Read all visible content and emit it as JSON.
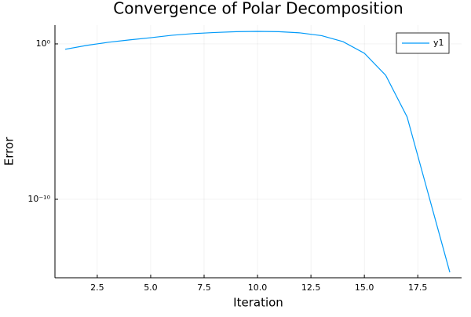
{
  "chart_data": {
    "type": "line",
    "title": "Convergence of Polar Decomposition",
    "x_label": "Iteration",
    "y_label": "Error",
    "x": [
      1,
      2,
      3,
      4,
      5,
      6,
      7,
      8,
      9,
      10,
      11,
      12,
      13,
      14,
      15,
      16,
      17,
      18,
      19
    ],
    "series": [
      {
        "name": "y1",
        "color": "#009af9",
        "values": [
          0.45,
          0.8,
          1.26,
          1.8,
          2.5,
          3.6,
          4.6,
          5.4,
          6.1,
          6.4,
          6.1,
          5.1,
          3.4,
          1.4,
          0.25,
          0.0095,
          2e-05,
          2e-10,
          2e-15
        ]
      }
    ],
    "xlim": [
      0.52,
      19.55
    ],
    "xticks": [
      2.5,
      {
        "value": 5,
        "label": "5.0"
      },
      7.5,
      {
        "value": 10,
        "label": "10.0"
      },
      12.5,
      {
        "value": 15,
        "label": "15.0"
      },
      17.5
    ],
    "ylim": [
      8.9e-16,
      16.2
    ],
    "y_scale": "log",
    "yticks": [
      {
        "value": 1,
        "label": "10⁰"
      },
      {
        "value": 1e-10,
        "label": "10⁻¹⁰"
      }
    ],
    "grid": true,
    "legend_position": "top-right"
  }
}
